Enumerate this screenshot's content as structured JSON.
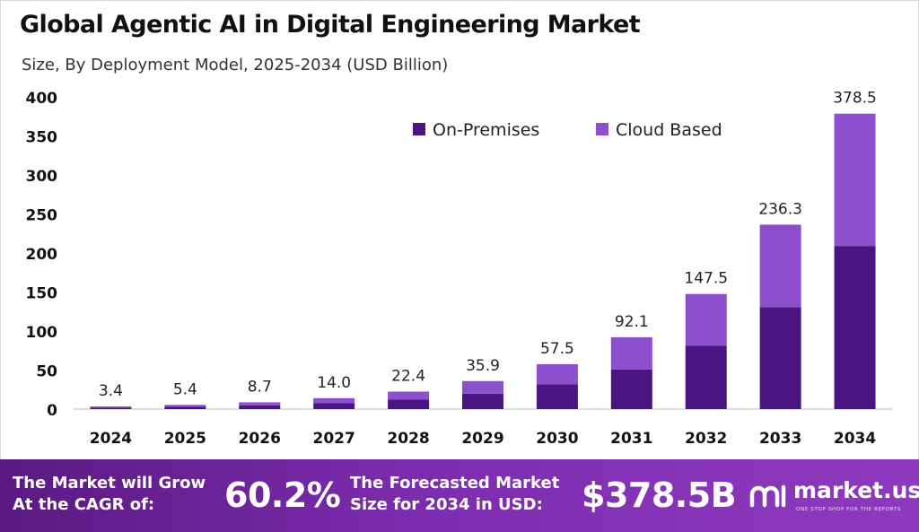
{
  "header": {
    "title": "Global Agentic AI in Digital Engineering Market",
    "subtitle": "Size, By Deployment Model, 2025-2034 (USD Billion)"
  },
  "chart_data": {
    "type": "bar",
    "stacked": true,
    "categories": [
      "2024",
      "2025",
      "2026",
      "2027",
      "2028",
      "2029",
      "2030",
      "2031",
      "2032",
      "2033",
      "2034"
    ],
    "series": [
      {
        "name": "On-Premises",
        "color": "#4a1580",
        "values": [
          1.9,
          3.0,
          4.8,
          7.7,
          12.4,
          19.8,
          31.7,
          50.8,
          81.4,
          130.4,
          209.0
        ]
      },
      {
        "name": "Cloud Based",
        "color": "#8e4fcf",
        "values": [
          1.5,
          2.4,
          3.9,
          6.3,
          10.0,
          16.1,
          25.8,
          41.3,
          66.1,
          105.9,
          169.5
        ]
      }
    ],
    "totals": [
      "3.4",
      "5.4",
      "8.7",
      "14.0",
      "22.4",
      "35.9",
      "57.5",
      "92.1",
      "147.5",
      "236.3",
      "378.5"
    ],
    "yticks": [
      "0",
      "50",
      "100",
      "150",
      "200",
      "250",
      "300",
      "350",
      "400"
    ],
    "ylim": [
      0,
      400
    ],
    "grid": false,
    "legend_position": "top-center"
  },
  "footer": {
    "cagr_line1": "The Market will Grow",
    "cagr_line2": "At the CAGR of:",
    "cagr_value": "60.2%",
    "forecast_line1": "The Forecasted Market",
    "forecast_line2": "Size for 2034 in USD:",
    "forecast_value": "$378.5B",
    "brand_name": "market.us",
    "brand_tagline": "ONE STOP SHOP FOR THE REPORTS",
    "brand_icon": "market-us-logo-icon"
  }
}
